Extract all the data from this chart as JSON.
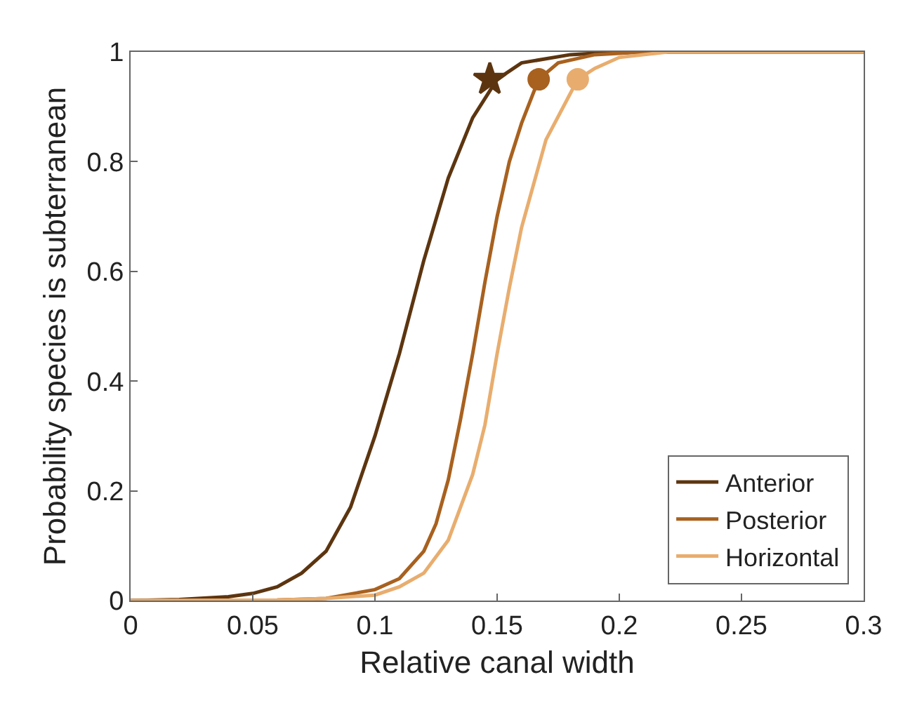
{
  "chart_data": {
    "type": "line",
    "xlabel": "Relative canal width",
    "ylabel": "Probability species is subterranean",
    "xlim": [
      0,
      0.3
    ],
    "ylim": [
      0,
      1
    ],
    "xticks": [
      0,
      0.05,
      0.1,
      0.15,
      0.2,
      0.25,
      0.3
    ],
    "yticks": [
      0,
      0.2,
      0.4,
      0.6,
      0.8,
      1
    ],
    "legend": "bottom right",
    "marker": "none",
    "line_style": "solid",
    "series": [
      {
        "name": "Anterior",
        "color": "#5c3510",
        "x": [
          0,
          0.02,
          0.04,
          0.05,
          0.06,
          0.07,
          0.08,
          0.09,
          0.1,
          0.11,
          0.12,
          0.13,
          0.14,
          0.15,
          0.16,
          0.18,
          0.2,
          0.3
        ],
        "values": [
          0,
          0.002,
          0.007,
          0.013,
          0.025,
          0.05,
          0.09,
          0.17,
          0.3,
          0.45,
          0.62,
          0.77,
          0.88,
          0.95,
          0.98,
          0.995,
          1,
          1
        ]
      },
      {
        "name": "Posterior",
        "color": "#a8611f",
        "x": [
          0,
          0.06,
          0.08,
          0.1,
          0.11,
          0.12,
          0.125,
          0.13,
          0.135,
          0.14,
          0.145,
          0.15,
          0.155,
          0.16,
          0.167,
          0.175,
          0.19,
          0.21,
          0.3
        ],
        "values": [
          0,
          0.001,
          0.004,
          0.02,
          0.04,
          0.09,
          0.14,
          0.22,
          0.33,
          0.45,
          0.58,
          0.7,
          0.8,
          0.87,
          0.95,
          0.98,
          0.995,
          1,
          1
        ]
      },
      {
        "name": "Horizontal",
        "color": "#e8ad6e",
        "x": [
          0,
          0.06,
          0.08,
          0.1,
          0.11,
          0.12,
          0.13,
          0.14,
          0.145,
          0.15,
          0.155,
          0.16,
          0.17,
          0.183,
          0.19,
          0.2,
          0.22,
          0.3
        ],
        "values": [
          0,
          0.001,
          0.004,
          0.01,
          0.025,
          0.05,
          0.11,
          0.23,
          0.32,
          0.45,
          0.57,
          0.68,
          0.84,
          0.95,
          0.97,
          0.99,
          1,
          1
        ]
      },
      {
        "type": "scatter",
        "color": "#5c3510",
        "marker": "star",
        "x": [
          0.147
        ],
        "values": [
          0.95
        ]
      },
      {
        "type": "scatter",
        "color": "#a8611f",
        "marker": "circle",
        "x": [
          0.167
        ],
        "values": [
          0.95
        ]
      },
      {
        "type": "scatter",
        "color": "#e8ad6e",
        "marker": "circle",
        "x": [
          0.183
        ],
        "values": [
          0.95
        ]
      }
    ]
  }
}
